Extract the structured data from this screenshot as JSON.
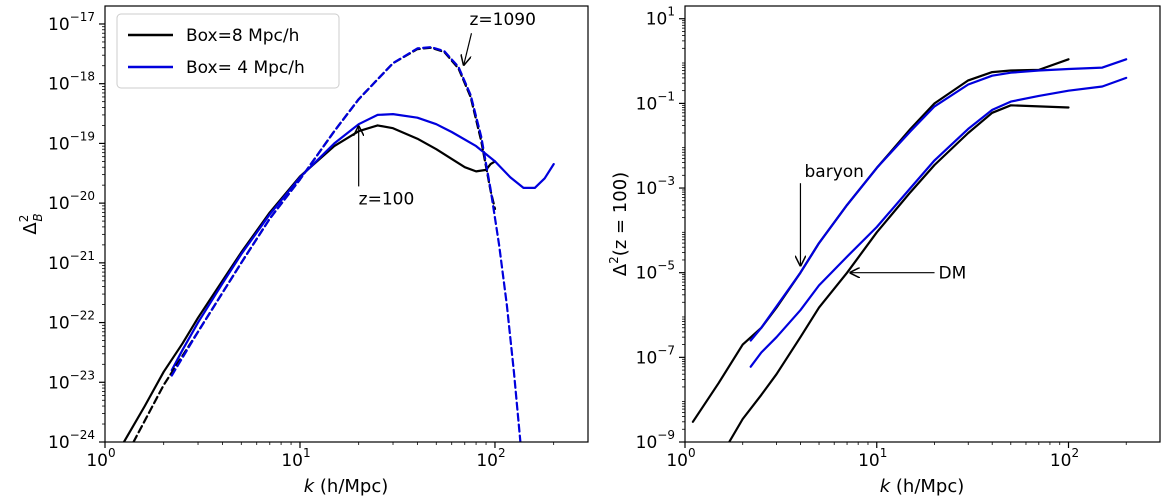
{
  "chart_data": [
    {
      "type": "line",
      "xlabel_var": "k",
      "xlabel_unit": " (h/Mpc)",
      "ylabel_base": "Δ",
      "ylabel_sup": "2",
      "ylabel_sub": "B",
      "xscale": "log",
      "yscale": "log",
      "xlim": [
        1,
        300
      ],
      "ylim": [
        1e-24,
        2e-17
      ],
      "x_ticks": [
        {
          "base": "10",
          "exp": "0"
        },
        {
          "base": "10",
          "exp": "1"
        },
        {
          "base": "10",
          "exp": "2"
        }
      ],
      "y_ticks": [
        {
          "base": "10",
          "exp": "−24"
        },
        {
          "base": "10",
          "exp": "−23"
        },
        {
          "base": "10",
          "exp": "−22"
        },
        {
          "base": "10",
          "exp": "−21"
        },
        {
          "base": "10",
          "exp": "−20"
        },
        {
          "base": "10",
          "exp": "−19"
        },
        {
          "base": "10",
          "exp": "−18"
        },
        {
          "base": "10",
          "exp": "−17"
        }
      ],
      "legend": {
        "placement": "top-left",
        "entries": [
          {
            "label": "Box=8 Mpc/h",
            "color": "#000000"
          },
          {
            "label": "Box= 4 Mpc/h",
            "color": "#0000dd"
          }
        ]
      },
      "series": [
        {
          "group": "Box=8 Mpc/h",
          "style": "solid",
          "color": "#000000",
          "x": [
            1.25,
            1.6,
            2,
            2.5,
            3,
            4,
            5,
            7,
            10,
            15,
            20,
            25,
            30,
            40,
            50,
            60,
            70,
            80,
            90,
            95,
            100
          ],
          "y": [
            1e-24,
            4e-24,
            1.5e-23,
            4.5e-23,
            1.2e-22,
            5e-22,
            1.5e-21,
            7e-21,
            2.8e-20,
            9e-20,
            1.6e-19,
            2e-19,
            1.8e-19,
            1.2e-19,
            8e-20,
            5.5e-20,
            4e-20,
            3.4e-20,
            3.6e-20,
            4.5e-20,
            5e-20
          ]
        },
        {
          "group": "Box= 4 Mpc/h",
          "style": "solid",
          "color": "#0000dd",
          "x": [
            2.2,
            2.5,
            3,
            4,
            5,
            7,
            10,
            15,
            20,
            25,
            30,
            40,
            50,
            60,
            80,
            100,
            120,
            140,
            160,
            180,
            200
          ],
          "y": [
            1.6e-23,
            3.5e-23,
            1e-22,
            4.5e-22,
            1.4e-21,
            6.5e-21,
            2.7e-20,
            1e-19,
            2.1e-19,
            3e-19,
            3.1e-19,
            2.7e-19,
            2.1e-19,
            1.55e-19,
            9e-20,
            5e-20,
            2.7e-20,
            1.8e-20,
            1.8e-20,
            2.6e-20,
            4.5e-20
          ]
        },
        {
          "group": "Box=8 Mpc/h",
          "style": "dashed",
          "color": "#000000",
          "x": [
            1.4,
            2,
            3,
            5,
            7,
            10,
            15,
            20,
            30,
            40,
            47,
            55,
            65,
            75,
            85,
            95,
            100
          ],
          "y": [
            1e-24,
            9e-24,
            7e-23,
            1e-21,
            5.5e-21,
            2.5e-20,
            1.6e-19,
            5.5e-19,
            2.2e-18,
            3.8e-18,
            4e-18,
            3.4e-18,
            1.8e-18,
            6e-19,
            1.1e-19,
            1.6e-20,
            8e-21
          ]
        },
        {
          "group": "Box= 4 Mpc/h",
          "style": "dashed",
          "color": "#0000dd",
          "x": [
            2.2,
            3,
            5,
            7,
            10,
            15,
            20,
            30,
            40,
            47,
            55,
            65,
            75,
            85,
            95,
            105,
            115,
            125,
            135,
            145
          ],
          "y": [
            1.3e-23,
            7e-23,
            1e-21,
            5.5e-21,
            2.5e-20,
            1.6e-19,
            5.5e-19,
            2.2e-18,
            3.9e-18,
            4.1e-18,
            3.5e-18,
            1.9e-18,
            6.5e-19,
            1.3e-19,
            1.7e-20,
            2e-21,
            2e-22,
            1.5e-23,
            1e-24,
            2e-25
          ]
        }
      ],
      "annotations": [
        {
          "text": "z=1090",
          "x_text": 74,
          "y_text": 1.2e-17,
          "x_arrow": 69,
          "y_arrow": 2e-18
        },
        {
          "text": "z=100",
          "x_text": 20,
          "y_text": 1.2e-20,
          "x_arrow": 20,
          "y_arrow": 2e-19
        }
      ]
    },
    {
      "type": "line",
      "xlabel_var": "k",
      "xlabel_unit": " (h/Mpc)",
      "ylabel_base": "Δ",
      "ylabel_sup": "2",
      "ylabel_rest": "(z = 100)",
      "xscale": "log",
      "yscale": "log",
      "xlim": [
        1,
        300
      ],
      "ylim": [
        1e-09,
        20
      ],
      "x_ticks": [
        {
          "base": "10",
          "exp": "0"
        },
        {
          "base": "10",
          "exp": "1"
        },
        {
          "base": "10",
          "exp": "2"
        }
      ],
      "y_ticks": [
        {
          "base": "10",
          "exp": "−9"
        },
        {
          "base": "10",
          "exp": "−7"
        },
        {
          "base": "10",
          "exp": "−5"
        },
        {
          "base": "10",
          "exp": "−3"
        },
        {
          "base": "10",
          "exp": "−1"
        },
        {
          "base": "10",
          "exp": "1"
        }
      ],
      "series": [
        {
          "group": "baryon",
          "style": "solid",
          "color": "#000000",
          "x": [
            1.1,
            1.5,
            2,
            2.5,
            3,
            4,
            5,
            7,
            10,
            15,
            20,
            30,
            40,
            50,
            70,
            100
          ],
          "y": [
            3e-09,
            2.5e-08,
            2e-07,
            5e-07,
            1.5e-06,
            1e-05,
            5e-05,
            0.0004,
            0.003,
            0.025,
            0.1,
            0.35,
            0.55,
            0.6,
            0.62,
            1.1
          ]
        },
        {
          "group": "baryon",
          "style": "solid",
          "color": "#0000dd",
          "x": [
            2.2,
            2.5,
            3,
            4,
            5,
            7,
            10,
            15,
            20,
            30,
            40,
            50,
            70,
            100,
            150,
            200
          ],
          "y": [
            2.5e-07,
            5e-07,
            1.6e-06,
            1e-05,
            5e-05,
            0.0004,
            0.003,
            0.022,
            0.085,
            0.28,
            0.45,
            0.53,
            0.6,
            0.65,
            0.7,
            1.1
          ]
        },
        {
          "group": "DM",
          "style": "solid",
          "color": "#000000",
          "x": [
            1.7,
            2,
            2.5,
            3,
            4,
            5,
            7,
            10,
            15,
            20,
            30,
            40,
            50,
            70,
            100
          ],
          "y": [
            1e-09,
            3.5e-09,
            1.3e-08,
            4e-08,
            3e-07,
            1.5e-06,
            1e-05,
            9e-05,
            0.0008,
            0.0035,
            0.02,
            0.06,
            0.09,
            0.085,
            0.08
          ]
        },
        {
          "group": "DM",
          "style": "solid",
          "color": "#0000dd",
          "x": [
            2.2,
            2.5,
            3,
            4,
            5,
            7,
            10,
            15,
            20,
            30,
            40,
            50,
            70,
            100,
            150,
            200
          ],
          "y": [
            6e-08,
            1.3e-07,
            3e-07,
            1.3e-06,
            5e-06,
            2.4e-05,
            0.00012,
            0.001,
            0.0045,
            0.025,
            0.07,
            0.11,
            0.15,
            0.2,
            0.25,
            0.4
          ]
        }
      ],
      "annotations": [
        {
          "text": "baryon",
          "x_text": 4.2,
          "y_text": 0.0025,
          "x_arrow": 4.0,
          "y_arrow": 1.4e-05
        },
        {
          "text": "DM",
          "x_text": 21,
          "y_text": 1e-05,
          "x_arrow": 7.2,
          "y_arrow": 1e-05
        }
      ]
    }
  ]
}
